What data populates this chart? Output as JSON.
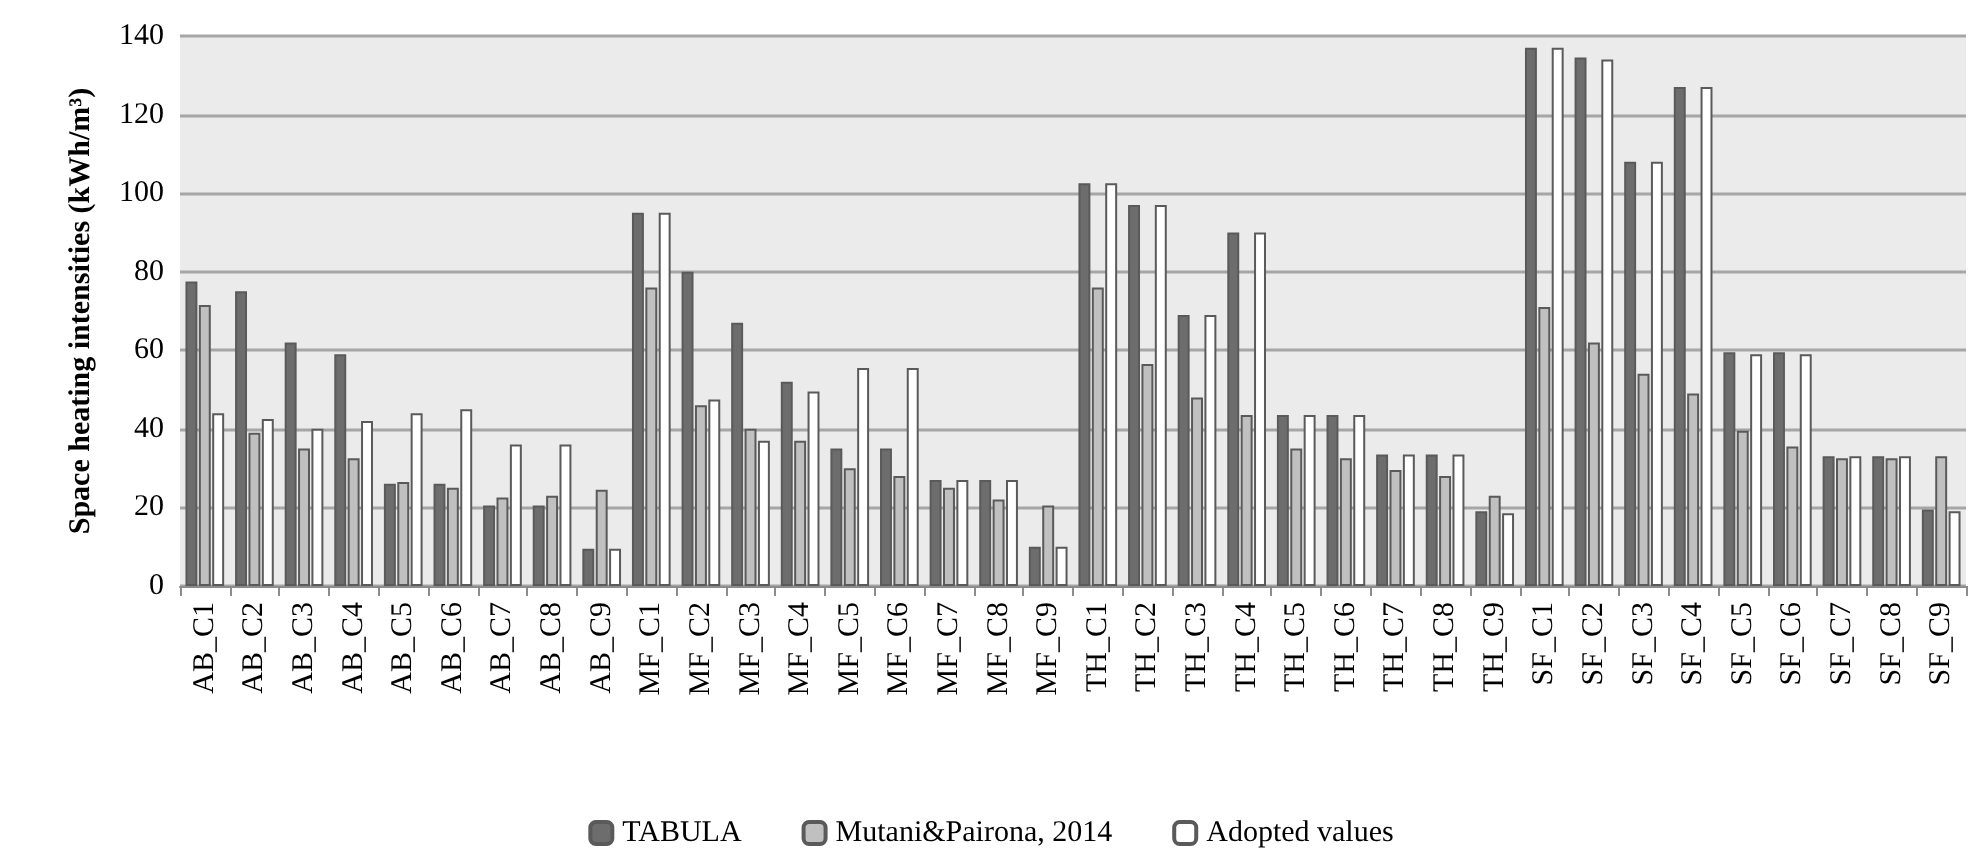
{
  "chart_data": {
    "type": "bar",
    "ylabel": "Space heating intensities (kWh/m³)",
    "categories": [
      "AB_C1",
      "AB_C2",
      "AB_C3",
      "AB_C4",
      "AB_C5",
      "AB_C6",
      "AB_C7",
      "AB_C8",
      "AB_C9",
      "MF_C1",
      "MF_C2",
      "MF_C3",
      "MF_C4",
      "MF_C5",
      "MF_C6",
      "MF_C7",
      "MF_C8",
      "MF_C9",
      "TH_C1",
      "TH_C2",
      "TH_C3",
      "TH_C4",
      "TH_C5",
      "TH_C6",
      "TH_C7",
      "TH_C8",
      "TH_C9",
      "SF_C1",
      "SF_C2",
      "SF_C3",
      "SF_C4",
      "SF_C5",
      "SF_C6",
      "SF_C7",
      "SF_C8",
      "SF_C9"
    ],
    "series": [
      {
        "name": "TABULA",
        "color": "#6d6d6d",
        "values": [
          77.5,
          75,
          62,
          59,
          26,
          26,
          20.5,
          20.5,
          9.5,
          95,
          80,
          67,
          52,
          35,
          35,
          27,
          27,
          10,
          102.5,
          97,
          69,
          90,
          43.5,
          43.5,
          33.5,
          33.5,
          19,
          137,
          134.5,
          108,
          127,
          59.5,
          59.5,
          33,
          33,
          19.5
        ]
      },
      {
        "name": "Mutani&Pairona, 2014",
        "color": "#c0c0c0",
        "values": [
          71.5,
          39,
          35,
          32.5,
          26.5,
          25,
          22.5,
          23,
          24.5,
          76,
          46,
          40,
          37,
          30,
          28,
          25,
          22,
          20.5,
          76,
          56.5,
          48,
          43.5,
          35,
          32.5,
          29.5,
          28,
          23,
          71,
          62,
          54,
          49,
          39.5,
          35.5,
          32.5,
          32.5,
          33
        ]
      },
      {
        "name": "Adopted values",
        "color": "#ffffff",
        "values": [
          44,
          42.5,
          40,
          42,
          44,
          45,
          36,
          36,
          9.5,
          95,
          47.5,
          37,
          49.5,
          55.5,
          55.5,
          27,
          27,
          10,
          102.5,
          97,
          69,
          90,
          43.5,
          43.5,
          33.5,
          33.5,
          18.5,
          137,
          134,
          108,
          127,
          59,
          59,
          33,
          33,
          19
        ]
      }
    ],
    "ylim": [
      0,
      140
    ],
    "yticks": [
      0,
      20,
      40,
      60,
      80,
      100,
      120,
      140
    ],
    "grid": "y",
    "legend": "bottom"
  }
}
